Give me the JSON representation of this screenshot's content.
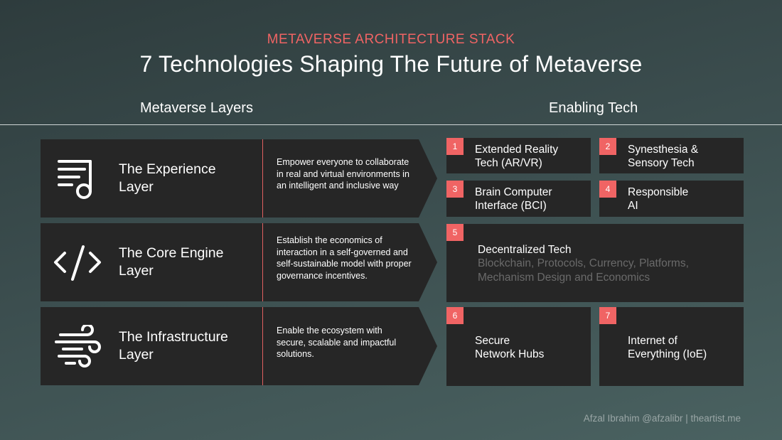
{
  "header": {
    "kicker": "METAVERSE ARCHITECTURE STACK",
    "title": "7 Technologies Shaping The Future of Metaverse"
  },
  "columns": {
    "left": "Metaverse Layers",
    "right": "Enabling Tech"
  },
  "layers": [
    {
      "name_line1": "The Experience",
      "name_line2": "Layer",
      "icon": "music-note-icon",
      "description": "Empower everyone to collaborate in real and virtual environments in an intelligent and inclusive way"
    },
    {
      "name_line1": "The Core Engine",
      "name_line2": "Layer",
      "icon": "code-icon",
      "description": "Establish the economics of interaction in a self-governed and self-sustainable model with proper governance incentives."
    },
    {
      "name_line1": "The Infrastructure",
      "name_line2": "Layer",
      "icon": "wind-icon",
      "description": "Enable the ecosystem with secure, scalable and impactful solutions."
    }
  ],
  "technologies": [
    {
      "number": "1",
      "line1": "Extended Reality",
      "line2": "Tech (AR/VR)"
    },
    {
      "number": "2",
      "line1": "Synesthesia &",
      "line2": "Sensory Tech"
    },
    {
      "number": "3",
      "line1": "Brain Computer",
      "line2": "Interface (BCI)"
    },
    {
      "number": "4",
      "line1": "Responsible",
      "line2": "AI"
    },
    {
      "number": "5",
      "line1": "Decentralized Tech",
      "sub_line1": "Blockchain, Protocols, Currency, Platforms,",
      "sub_line2": "Mechanism Design and Economics"
    },
    {
      "number": "6",
      "line1": "Secure",
      "line2": "Network Hubs"
    },
    {
      "number": "7",
      "line1": "Internet of",
      "line2": "Everything (IoE)"
    }
  ],
  "credit": "Afzal Ibrahim @afzalibr | theartist.me",
  "colors": {
    "accent": "#f06464",
    "card": "#262626",
    "muted_text": "#6a6a6a"
  }
}
